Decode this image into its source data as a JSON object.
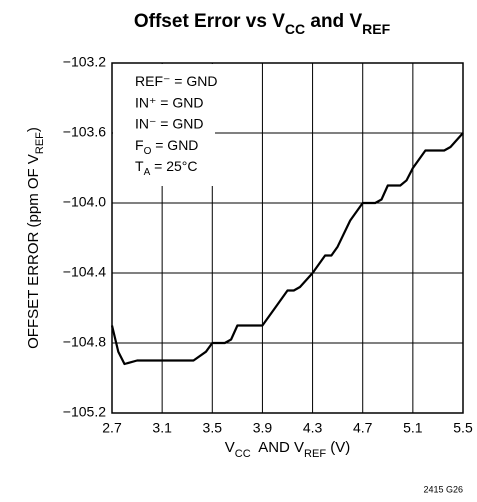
{
  "chart_data": {
    "type": "line",
    "title": [
      "Offset Error vs V",
      "CC",
      " and V",
      "REF"
    ],
    "xlabel": [
      "V",
      "CC",
      "  AND V",
      "REF",
      " (V)"
    ],
    "ylabel": [
      "OFFSET ERROR (ppm OF V",
      "REF",
      ")"
    ],
    "annotations": [
      [
        "REF⁻ = GND"
      ],
      [
        "IN⁺ = GND"
      ],
      [
        "IN⁻ = GND"
      ],
      [
        "F",
        "O",
        " = GND"
      ],
      [
        "T",
        "A",
        " = 25°C"
      ]
    ],
    "footnote": "2415 G26",
    "x": [
      2.7,
      2.75,
      2.8,
      2.9,
      3.0,
      3.2,
      3.35,
      3.45,
      3.5,
      3.6,
      3.65,
      3.7,
      3.8,
      3.9,
      4.0,
      4.1,
      4.15,
      4.2,
      4.3,
      4.4,
      4.45,
      4.5,
      4.6,
      4.7,
      4.8,
      4.85,
      4.9,
      5.0,
      5.05,
      5.1,
      5.2,
      5.35,
      5.4,
      5.5
    ],
    "values": [
      -104.7,
      -104.85,
      -104.92,
      -104.9,
      -104.9,
      -104.9,
      -104.9,
      -104.85,
      -104.8,
      -104.8,
      -104.78,
      -104.7,
      -104.7,
      -104.7,
      -104.6,
      -104.5,
      -104.5,
      -104.48,
      -104.4,
      -104.3,
      -104.3,
      -104.25,
      -104.1,
      -104.0,
      -104.0,
      -103.98,
      -103.9,
      -103.9,
      -103.87,
      -103.8,
      -103.7,
      -103.7,
      -103.68,
      -103.6
    ],
    "color": "#000000",
    "xlim": [
      2.7,
      5.5
    ],
    "xticks": [
      2.7,
      3.1,
      3.5,
      3.9,
      4.3,
      4.7,
      5.1,
      5.5
    ],
    "ylim": [
      -105.2,
      -103.2
    ],
    "yticks": [
      {
        "value": -105.2,
        "label": "−105.2"
      },
      {
        "value": -104.8,
        "label": "−104.8"
      },
      {
        "value": -104.4,
        "label": "−104.4"
      },
      {
        "value": -104.0,
        "label": "−104.0"
      },
      {
        "value": -103.6,
        "label": "−103.6"
      },
      {
        "value": -103.2,
        "label": "−103.2"
      }
    ],
    "grid": true
  }
}
